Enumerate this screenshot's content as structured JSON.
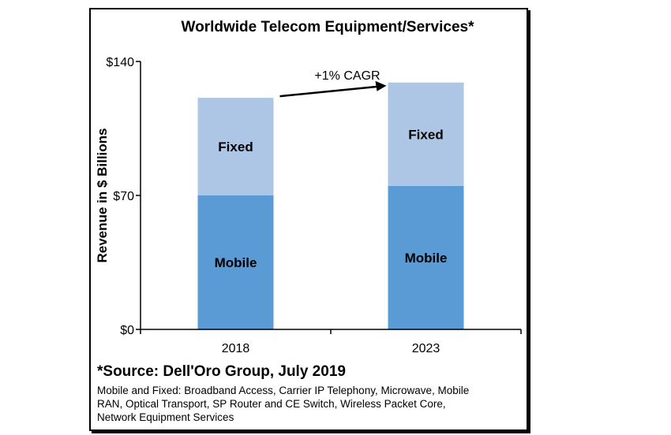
{
  "chart_data": {
    "type": "bar",
    "stacked": true,
    "title": "Worldwide Telecom Equipment/Services*",
    "ylabel": "Revenue in $ Billions",
    "xlabel": "",
    "categories": [
      "2018",
      "2023"
    ],
    "series": [
      {
        "name": "Mobile",
        "values": [
          70,
          75
        ],
        "color": "#5b9bd5"
      },
      {
        "name": "Fixed",
        "values": [
          51,
          54
        ],
        "color": "#adc6e6"
      }
    ],
    "ylim": [
      0,
      140
    ],
    "yticks": [
      0,
      70,
      140
    ],
    "ytick_labels": [
      "$0",
      "$70",
      "$140"
    ],
    "grid": false,
    "annotation": "+1% CAGR"
  },
  "footnote": {
    "source": "*Source: Dell'Oro Group, July 2019",
    "lines": [
      "Mobile and Fixed: Broadband Access, Carrier IP Telephony, Microwave, Mobile",
      "RAN, Optical Transport, SP Router and CE Switch, Wireless Packet Core,",
      "Network Equipment Services"
    ]
  }
}
